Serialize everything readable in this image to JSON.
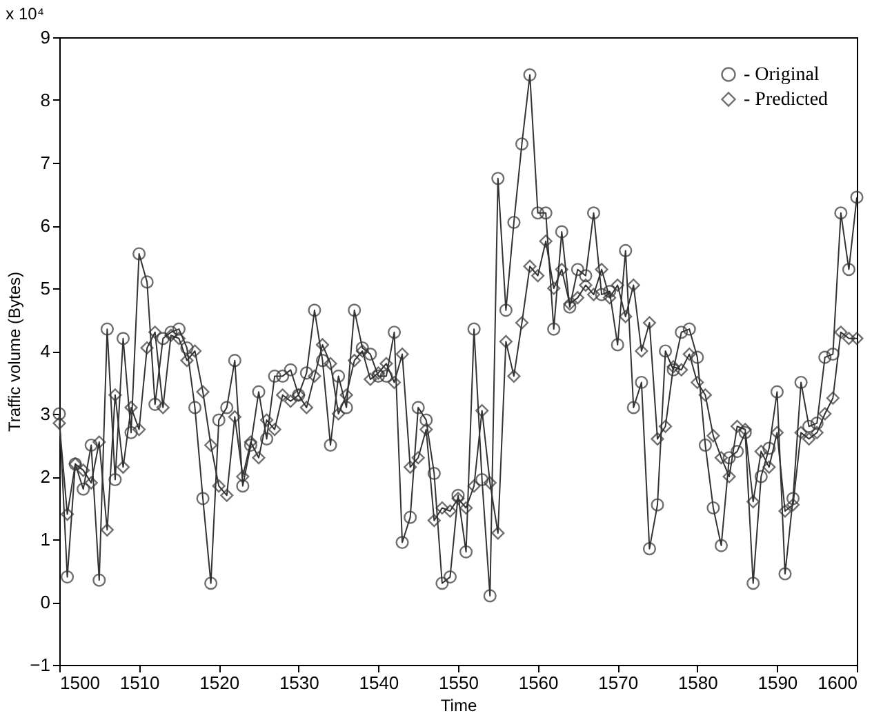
{
  "chart_data": {
    "type": "line",
    "xlabel": "Time",
    "ylabel": "Traffic volume (Bytes)",
    "annotations": [
      "x 10⁴"
    ],
    "x": [
      1500,
      1501,
      1502,
      1503,
      1504,
      1505,
      1506,
      1507,
      1508,
      1509,
      1510,
      1511,
      1512,
      1513,
      1514,
      1515,
      1516,
      1517,
      1518,
      1519,
      1520,
      1521,
      1522,
      1523,
      1524,
      1525,
      1526,
      1527,
      1528,
      1529,
      1530,
      1531,
      1532,
      1533,
      1534,
      1535,
      1536,
      1537,
      1538,
      1539,
      1540,
      1541,
      1542,
      1543,
      1544,
      1545,
      1546,
      1547,
      1548,
      1549,
      1550,
      1551,
      1552,
      1553,
      1554,
      1555,
      1556,
      1557,
      1558,
      1559,
      1560,
      1561,
      1562,
      1563,
      1564,
      1565,
      1566,
      1567,
      1568,
      1569,
      1570,
      1571,
      1572,
      1573,
      1574,
      1575,
      1576,
      1577,
      1578,
      1579,
      1580,
      1581,
      1582,
      1583,
      1584,
      1585,
      1586,
      1587,
      1588,
      1589,
      1590,
      1591,
      1592,
      1593,
      1594,
      1595,
      1596,
      1597,
      1598,
      1599,
      1600
    ],
    "series": [
      {
        "name": "- Original",
        "color": "#333333",
        "marker": "circle",
        "values": [
          3.0,
          0.4,
          2.2,
          1.8,
          2.5,
          0.35,
          4.35,
          1.95,
          4.2,
          2.7,
          5.55,
          5.1,
          3.15,
          4.2,
          4.3,
          4.35,
          4.05,
          3.1,
          1.65,
          0.3,
          2.9,
          3.1,
          3.85,
          1.85,
          2.5,
          3.35,
          2.6,
          3.6,
          3.6,
          3.7,
          3.3,
          3.65,
          4.65,
          3.85,
          2.5,
          3.6,
          3.1,
          4.65,
          4.05,
          3.95,
          3.6,
          3.6,
          4.3,
          0.95,
          1.35,
          3.1,
          2.9,
          2.05,
          0.3,
          0.4,
          1.7,
          0.8,
          4.35,
          1.95,
          0.1,
          6.75,
          4.65,
          6.05,
          7.3,
          8.4,
          6.2,
          6.2,
          4.35,
          5.9,
          4.7,
          5.3,
          5.2,
          6.2,
          4.9,
          4.95,
          4.1,
          5.6,
          3.1,
          3.5,
          0.85,
          1.55,
          4.0,
          3.7,
          4.3,
          4.35,
          3.9,
          2.5,
          1.5,
          0.9,
          2.3,
          2.4,
          2.7,
          0.3,
          2.0,
          2.45,
          3.35,
          0.45,
          1.65,
          3.5,
          2.8,
          2.85,
          3.9,
          3.95,
          6.2,
          5.3,
          6.45
        ]
      },
      {
        "name": "- Predicted",
        "color": "#333333",
        "marker": "diamond",
        "values": [
          2.85,
          1.4,
          2.2,
          2.1,
          1.9,
          2.55,
          1.15,
          3.3,
          2.15,
          3.1,
          2.75,
          4.05,
          4.3,
          3.1,
          4.25,
          4.2,
          3.85,
          4.0,
          3.35,
          2.5,
          1.85,
          1.7,
          2.95,
          2.0,
          2.55,
          2.3,
          2.9,
          2.75,
          3.3,
          3.2,
          3.3,
          3.1,
          3.6,
          4.1,
          3.8,
          3.0,
          3.3,
          3.85,
          4.0,
          3.55,
          3.65,
          3.8,
          3.5,
          3.95,
          2.15,
          2.3,
          2.75,
          1.3,
          1.5,
          1.45,
          1.65,
          1.5,
          1.85,
          3.05,
          1.9,
          1.1,
          4.15,
          3.6,
          4.45,
          5.35,
          5.2,
          5.75,
          5.0,
          5.3,
          4.75,
          4.85,
          5.05,
          4.9,
          5.3,
          4.85,
          5.05,
          4.55,
          5.05,
          4.0,
          4.45,
          2.6,
          2.8,
          3.75,
          3.7,
          3.95,
          3.5,
          3.3,
          2.65,
          2.3,
          2.0,
          2.8,
          2.75,
          1.6,
          2.4,
          2.15,
          2.7,
          1.45,
          1.55,
          2.7,
          2.6,
          2.7,
          3.0,
          3.25,
          4.3,
          4.2,
          4.2
        ]
      }
    ],
    "xlim": [
      1500,
      1600
    ],
    "xticks": [
      1500,
      1510,
      1520,
      1530,
      1540,
      1550,
      1560,
      1570,
      1580,
      1590,
      1600
    ],
    "ylim": [
      -1,
      9
    ],
    "yticks": [
      -1,
      0,
      1,
      2,
      3,
      4,
      5,
      6,
      7,
      8,
      9
    ],
    "grid": false,
    "legend": "top right",
    "line_style": "solid"
  }
}
